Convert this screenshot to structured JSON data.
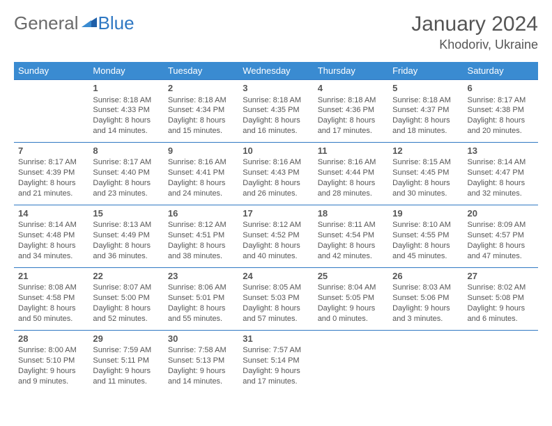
{
  "brand": {
    "part1": "General",
    "part2": "Blue"
  },
  "title": "January 2024",
  "location": "Khodoriv, Ukraine",
  "colors": {
    "header_bg": "#3a8bd1",
    "header_text": "#ffffff",
    "border": "#2f78c3",
    "text": "#555555",
    "logo_gray": "#6a6a6a",
    "logo_blue": "#2f78c3"
  },
  "typography": {
    "title_fontsize": 30,
    "location_fontsize": 18,
    "header_fontsize": 13,
    "cell_fontsize": 11,
    "daynum_fontsize": 13
  },
  "days_of_week": [
    "Sunday",
    "Monday",
    "Tuesday",
    "Wednesday",
    "Thursday",
    "Friday",
    "Saturday"
  ],
  "weeks": [
    [
      null,
      {
        "n": "1",
        "sr": "Sunrise: 8:18 AM",
        "ss": "Sunset: 4:33 PM",
        "dl": "Daylight: 8 hours and 14 minutes."
      },
      {
        "n": "2",
        "sr": "Sunrise: 8:18 AM",
        "ss": "Sunset: 4:34 PM",
        "dl": "Daylight: 8 hours and 15 minutes."
      },
      {
        "n": "3",
        "sr": "Sunrise: 8:18 AM",
        "ss": "Sunset: 4:35 PM",
        "dl": "Daylight: 8 hours and 16 minutes."
      },
      {
        "n": "4",
        "sr": "Sunrise: 8:18 AM",
        "ss": "Sunset: 4:36 PM",
        "dl": "Daylight: 8 hours and 17 minutes."
      },
      {
        "n": "5",
        "sr": "Sunrise: 8:18 AM",
        "ss": "Sunset: 4:37 PM",
        "dl": "Daylight: 8 hours and 18 minutes."
      },
      {
        "n": "6",
        "sr": "Sunrise: 8:17 AM",
        "ss": "Sunset: 4:38 PM",
        "dl": "Daylight: 8 hours and 20 minutes."
      }
    ],
    [
      {
        "n": "7",
        "sr": "Sunrise: 8:17 AM",
        "ss": "Sunset: 4:39 PM",
        "dl": "Daylight: 8 hours and 21 minutes."
      },
      {
        "n": "8",
        "sr": "Sunrise: 8:17 AM",
        "ss": "Sunset: 4:40 PM",
        "dl": "Daylight: 8 hours and 23 minutes."
      },
      {
        "n": "9",
        "sr": "Sunrise: 8:16 AM",
        "ss": "Sunset: 4:41 PM",
        "dl": "Daylight: 8 hours and 24 minutes."
      },
      {
        "n": "10",
        "sr": "Sunrise: 8:16 AM",
        "ss": "Sunset: 4:43 PM",
        "dl": "Daylight: 8 hours and 26 minutes."
      },
      {
        "n": "11",
        "sr": "Sunrise: 8:16 AM",
        "ss": "Sunset: 4:44 PM",
        "dl": "Daylight: 8 hours and 28 minutes."
      },
      {
        "n": "12",
        "sr": "Sunrise: 8:15 AM",
        "ss": "Sunset: 4:45 PM",
        "dl": "Daylight: 8 hours and 30 minutes."
      },
      {
        "n": "13",
        "sr": "Sunrise: 8:14 AM",
        "ss": "Sunset: 4:47 PM",
        "dl": "Daylight: 8 hours and 32 minutes."
      }
    ],
    [
      {
        "n": "14",
        "sr": "Sunrise: 8:14 AM",
        "ss": "Sunset: 4:48 PM",
        "dl": "Daylight: 8 hours and 34 minutes."
      },
      {
        "n": "15",
        "sr": "Sunrise: 8:13 AM",
        "ss": "Sunset: 4:49 PM",
        "dl": "Daylight: 8 hours and 36 minutes."
      },
      {
        "n": "16",
        "sr": "Sunrise: 8:12 AM",
        "ss": "Sunset: 4:51 PM",
        "dl": "Daylight: 8 hours and 38 minutes."
      },
      {
        "n": "17",
        "sr": "Sunrise: 8:12 AM",
        "ss": "Sunset: 4:52 PM",
        "dl": "Daylight: 8 hours and 40 minutes."
      },
      {
        "n": "18",
        "sr": "Sunrise: 8:11 AM",
        "ss": "Sunset: 4:54 PM",
        "dl": "Daylight: 8 hours and 42 minutes."
      },
      {
        "n": "19",
        "sr": "Sunrise: 8:10 AM",
        "ss": "Sunset: 4:55 PM",
        "dl": "Daylight: 8 hours and 45 minutes."
      },
      {
        "n": "20",
        "sr": "Sunrise: 8:09 AM",
        "ss": "Sunset: 4:57 PM",
        "dl": "Daylight: 8 hours and 47 minutes."
      }
    ],
    [
      {
        "n": "21",
        "sr": "Sunrise: 8:08 AM",
        "ss": "Sunset: 4:58 PM",
        "dl": "Daylight: 8 hours and 50 minutes."
      },
      {
        "n": "22",
        "sr": "Sunrise: 8:07 AM",
        "ss": "Sunset: 5:00 PM",
        "dl": "Daylight: 8 hours and 52 minutes."
      },
      {
        "n": "23",
        "sr": "Sunrise: 8:06 AM",
        "ss": "Sunset: 5:01 PM",
        "dl": "Daylight: 8 hours and 55 minutes."
      },
      {
        "n": "24",
        "sr": "Sunrise: 8:05 AM",
        "ss": "Sunset: 5:03 PM",
        "dl": "Daylight: 8 hours and 57 minutes."
      },
      {
        "n": "25",
        "sr": "Sunrise: 8:04 AM",
        "ss": "Sunset: 5:05 PM",
        "dl": "Daylight: 9 hours and 0 minutes."
      },
      {
        "n": "26",
        "sr": "Sunrise: 8:03 AM",
        "ss": "Sunset: 5:06 PM",
        "dl": "Daylight: 9 hours and 3 minutes."
      },
      {
        "n": "27",
        "sr": "Sunrise: 8:02 AM",
        "ss": "Sunset: 5:08 PM",
        "dl": "Daylight: 9 hours and 6 minutes."
      }
    ],
    [
      {
        "n": "28",
        "sr": "Sunrise: 8:00 AM",
        "ss": "Sunset: 5:10 PM",
        "dl": "Daylight: 9 hours and 9 minutes."
      },
      {
        "n": "29",
        "sr": "Sunrise: 7:59 AM",
        "ss": "Sunset: 5:11 PM",
        "dl": "Daylight: 9 hours and 11 minutes."
      },
      {
        "n": "30",
        "sr": "Sunrise: 7:58 AM",
        "ss": "Sunset: 5:13 PM",
        "dl": "Daylight: 9 hours and 14 minutes."
      },
      {
        "n": "31",
        "sr": "Sunrise: 7:57 AM",
        "ss": "Sunset: 5:14 PM",
        "dl": "Daylight: 9 hours and 17 minutes."
      },
      null,
      null,
      null
    ]
  ]
}
